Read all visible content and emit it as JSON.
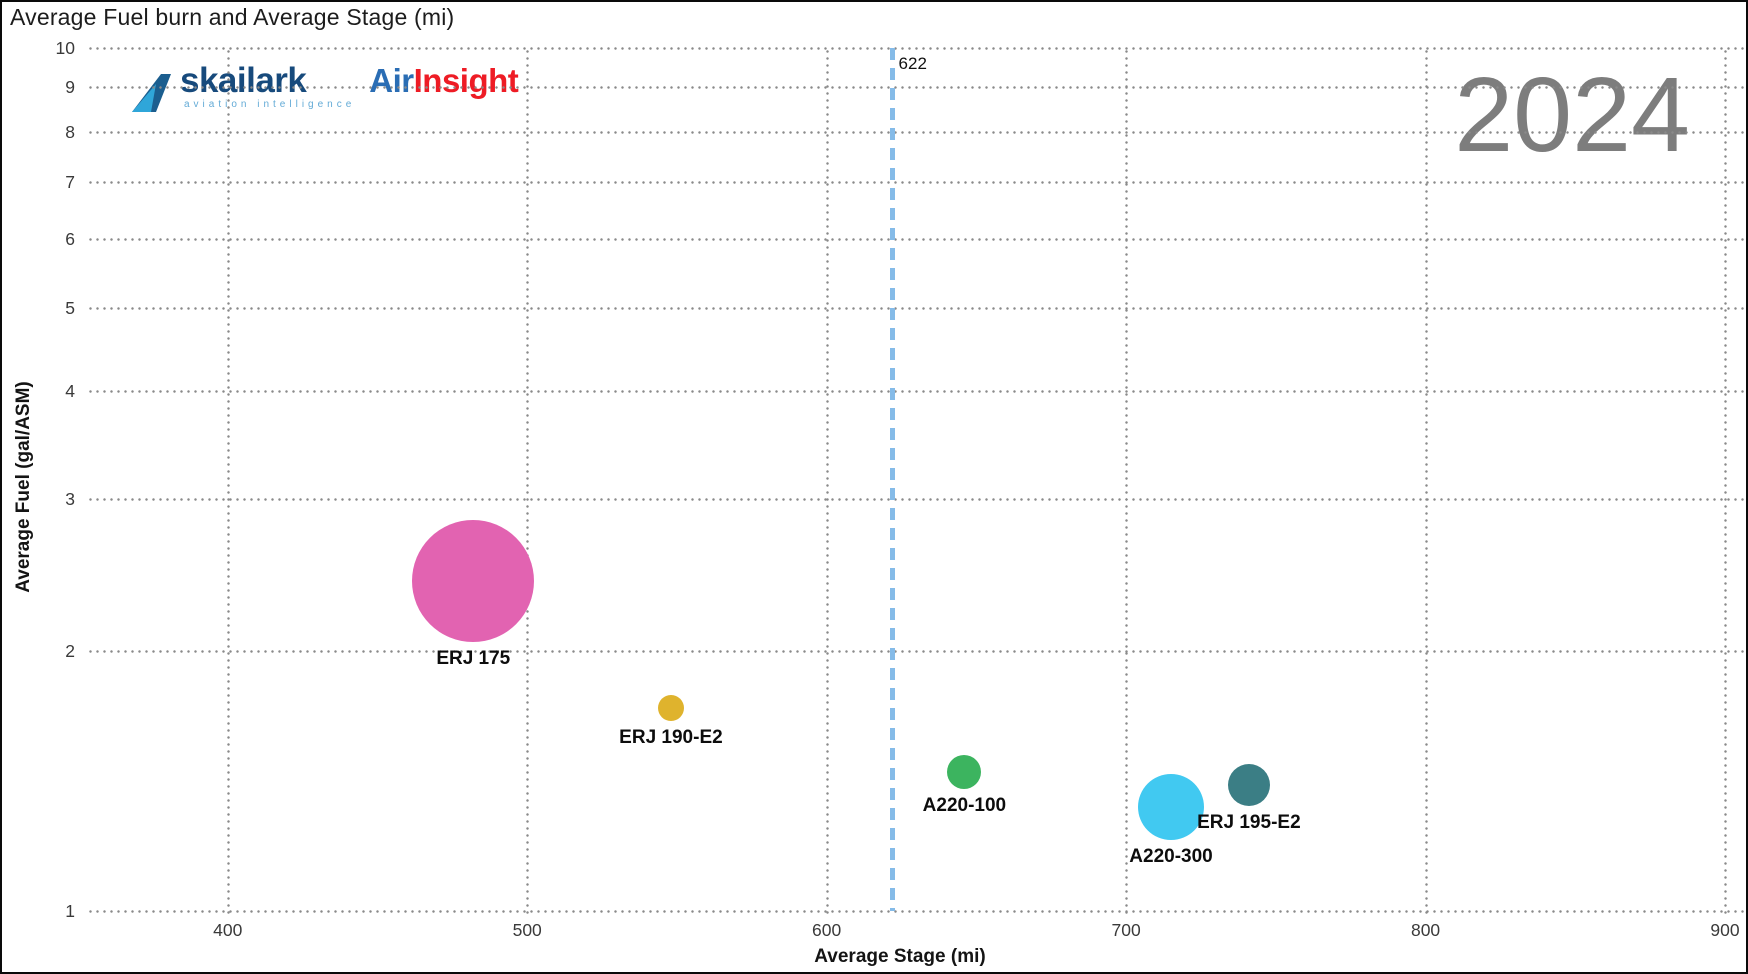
{
  "title": "Average Fuel burn and Average Stage (mi)",
  "watermark": "2024",
  "logo": {
    "brand": "skailark",
    "tagline": "aviation intelligence",
    "product_air": "Air",
    "product_insight": "Insight"
  },
  "chart_data": {
    "type": "scatter",
    "title": "Average Fuel burn and Average Stage (mi)",
    "xlabel": "Average Stage (mi)",
    "ylabel": "Average Fuel (gal/ASM)",
    "x_ticks": [
      400,
      500,
      600,
      700,
      800,
      900
    ],
    "x_range": [
      353,
      907
    ],
    "y_scale": "log",
    "y_ticks": [
      1,
      2,
      3,
      4,
      5,
      6,
      7,
      8,
      9,
      10
    ],
    "y_range": [
      1,
      10
    ],
    "grid": "dotted",
    "legend_position": "none",
    "reference_line": {
      "x": 622,
      "label": "622",
      "color": "#85bbe8",
      "style": "dashed"
    },
    "points": [
      {
        "label": "ERJ 175",
        "x": 482,
        "y": 2.41,
        "radius_px": 61,
        "color": "#e263b1"
      },
      {
        "label": "ERJ 190-E2",
        "x": 548,
        "y": 1.72,
        "radius_px": 13,
        "color": "#dfb32d"
      },
      {
        "label": "A220-100",
        "x": 646,
        "y": 1.45,
        "radius_px": 17,
        "color": "#3cb45f"
      },
      {
        "label": "A220-300",
        "x": 715,
        "y": 1.32,
        "radius_px": 33,
        "color": "#41c9f1"
      },
      {
        "label": "ERJ 195-E2",
        "x": 741,
        "y": 1.4,
        "radius_px": 21,
        "color": "#3b7e85"
      }
    ]
  },
  "colors": {
    "grid": "#8a8a8a",
    "tick_text": "#3a3a3a",
    "watermark": "#7d7d7d",
    "brand_navy": "#174a7c",
    "brand_blue": "#2a6db4",
    "brand_red": "#ee1c25",
    "tagline_blue": "#62aad6"
  }
}
